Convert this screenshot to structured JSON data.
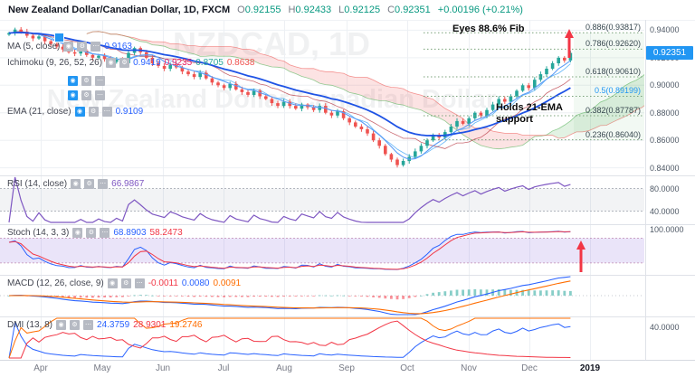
{
  "header": {
    "title": "New Zealand Dollar/Canadian Dollar, 1D, FXCM",
    "o_label": "O",
    "o": "0.92155",
    "h_label": "H",
    "h": "0.92433",
    "l_label": "L",
    "l": "0.92125",
    "c_label": "C",
    "c": "0.92351",
    "change": "+0.00196 (+0.21%)"
  },
  "icons": {
    "eye": "◉",
    "settings": "⚙",
    "more": "⋯"
  },
  "legend": {
    "ma": {
      "label": "MA (5, close)",
      "value": "0.9163"
    },
    "ichimoku": {
      "label": "Ichimoku (9, 26, 52, 26)",
      "values": [
        "0.9419",
        "0.9235",
        "0.8705",
        "0.8638"
      ]
    },
    "ema": {
      "label": "EMA (21, close)",
      "value": "0.9109"
    }
  },
  "panes": {
    "rsi": {
      "label": "RSI (14, close)",
      "value": "66.9867",
      "axis": [
        "80.0000",
        "40.0000"
      ]
    },
    "stoch": {
      "label": "Stoch (14, 3, 3)",
      "values": [
        "68.8903",
        "58.2473"
      ],
      "axis": [
        "100.0000"
      ]
    },
    "macd": {
      "label": "MACD (12, 26, close, 9)",
      "values": [
        "-0.0011",
        "0.0080",
        "0.0091"
      ],
      "axis": []
    },
    "dmi": {
      "label": "DMI (13, 8)",
      "values": [
        "24.3759",
        "28.9301",
        "19.2746"
      ],
      "axis": [
        "40.0000"
      ]
    }
  },
  "annotations": {
    "fib_note": "Eyes 88.6% Fib",
    "ema_note": "Holds 21-EMA support"
  },
  "price_axis": {
    "labels": [
      "0.94000",
      "0.92000",
      "0.90000",
      "0.88000",
      "0.86000",
      "0.84000"
    ],
    "last_price": "0.92351"
  },
  "watermark": {
    "line1": "NZDCAD, 1D",
    "line2": "New Zealand Dollar/Canadian Dollar"
  },
  "colors": {
    "accent": "#2196f3",
    "up": "#26a69a",
    "down": "#ef5350",
    "arrow": "#f23645",
    "ma5": "#5b9cf6",
    "ema21": "#1e53e5",
    "rsi": "#7e57c2",
    "stoch_k": "#2962ff",
    "stoch_d": "#f23645",
    "macd": "#2962ff",
    "signal": "#ff6d00",
    "pdi": "#2962ff",
    "ndi": "#f23645",
    "adx": "#ff6d00"
  },
  "chart_data": {
    "type": "candlestick",
    "symbol": "NZDCAD",
    "timeframe": "1D",
    "x_labels": [
      "Apr",
      "May",
      "Jun",
      "Jul",
      "Aug",
      "Sep",
      "Oct",
      "Nov",
      "Dec",
      "2019"
    ],
    "ylim": [
      0.8345,
      0.9475
    ],
    "price_gridlines": [
      0.94,
      0.92,
      0.9,
      0.88,
      0.86,
      0.84
    ],
    "closes": [
      0.938,
      0.9405,
      0.939,
      0.936,
      0.934,
      0.9355,
      0.932,
      0.93,
      0.928,
      0.926,
      0.924,
      0.923,
      0.925,
      0.922,
      0.92,
      0.9215,
      0.919,
      0.917,
      0.9185,
      0.916,
      0.9235,
      0.927,
      0.924,
      0.92,
      0.916,
      0.914,
      0.912,
      0.915,
      0.913,
      0.91,
      0.908,
      0.906,
      0.909,
      0.905,
      0.902,
      0.9,
      0.898,
      0.901,
      0.897,
      0.895,
      0.893,
      0.896,
      0.892,
      0.89,
      0.887,
      0.885,
      0.888,
      0.885,
      0.883,
      0.886,
      0.884,
      0.882,
      0.885,
      0.88,
      0.878,
      0.881,
      0.876,
      0.873,
      0.87,
      0.868,
      0.865,
      0.86,
      0.856,
      0.85,
      0.846,
      0.842,
      0.845,
      0.848,
      0.852,
      0.856,
      0.86,
      0.864,
      0.862,
      0.866,
      0.87,
      0.874,
      0.872,
      0.876,
      0.88,
      0.878,
      0.882,
      0.886,
      0.89,
      0.888,
      0.892,
      0.896,
      0.9,
      0.898,
      0.904,
      0.908,
      0.912,
      0.916,
      0.92,
      0.918,
      0.9235
    ],
    "ohlc_last": {
      "open": 0.92155,
      "high": 0.92433,
      "low": 0.92125,
      "close": 0.92351
    },
    "indicators": {
      "ma5_last": 0.9163,
      "ema21_last": 0.9109,
      "ichimoku_last": [
        0.9419,
        0.9235,
        0.8705,
        0.8638
      ],
      "rsi14_last": 66.9867,
      "stoch_last": [
        68.8903,
        58.2473
      ],
      "macd_last": [
        -0.0011,
        0.008,
        0.0091
      ],
      "dmi_last": [
        24.3759,
        28.9301,
        19.2746
      ]
    },
    "fib_levels": [
      {
        "label": "0.886(0.93817)",
        "price": 0.93817,
        "highlight": false
      },
      {
        "label": "0.786(0.92620)",
        "price": 0.9262,
        "highlight": false
      },
      {
        "label": "0.618(0.90610)",
        "price": 0.9061,
        "highlight": false
      },
      {
        "label": "0.5(0.89199)",
        "price": 0.89199,
        "highlight": true
      },
      {
        "label": "0.382(0.87787)",
        "price": 0.87787,
        "highlight": false
      },
      {
        "label": "0.236(0.86040)",
        "price": 0.8604,
        "highlight": false
      }
    ]
  }
}
